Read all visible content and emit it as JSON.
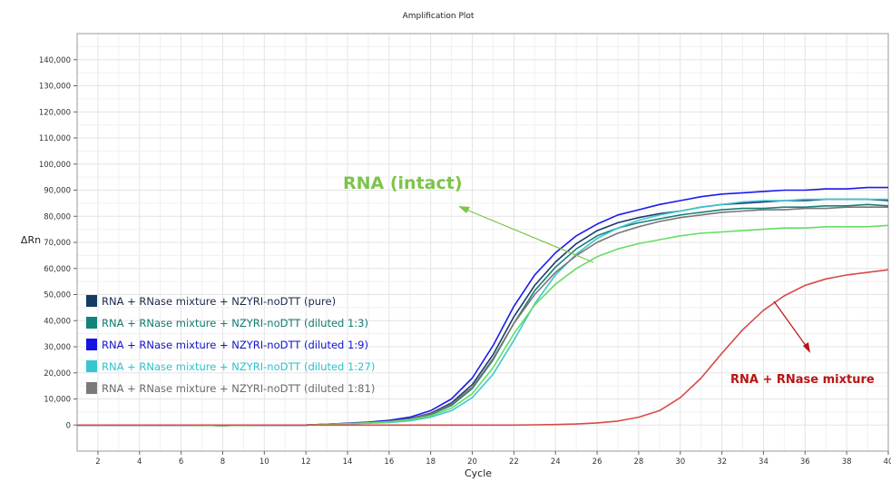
{
  "chart_data": {
    "type": "line",
    "title": "Amplification Plot",
    "xlabel": "Cycle",
    "ylabel": "ΔRn",
    "xlim": [
      1,
      40
    ],
    "ylim": [
      -10000,
      150000
    ],
    "xticks": [
      2,
      4,
      6,
      8,
      10,
      12,
      14,
      16,
      18,
      20,
      22,
      24,
      26,
      28,
      30,
      32,
      34,
      36,
      38,
      40
    ],
    "yticks": [
      0,
      10000,
      20000,
      30000,
      40000,
      50000,
      60000,
      70000,
      80000,
      90000,
      100000,
      110000,
      120000,
      130000,
      140000
    ],
    "ytick_labels": [
      "0",
      "10,000",
      "20,000",
      "30,000",
      "40,000",
      "50,000",
      "60,000",
      "70,000",
      "80,000",
      "90,000",
      "100,000",
      "110,000",
      "120,000",
      "130,000",
      "140,000"
    ],
    "grid": true,
    "legend_position": "center-left",
    "x": [
      1,
      2,
      4,
      6,
      8,
      10,
      12,
      14,
      15,
      16,
      17,
      18,
      19,
      20,
      21,
      22,
      23,
      24,
      25,
      26,
      27,
      28,
      29,
      30,
      31,
      32,
      33,
      34,
      35,
      36,
      37,
      38,
      39,
      40
    ],
    "series": [
      {
        "name": "RNA + RNase mixture + NZYRI-noDTT (pure)",
        "color": "#1c3a6e",
        "values": [
          0,
          0,
          0,
          0,
          -200,
          0,
          0,
          600,
          900,
          1500,
          2500,
          4500,
          8500,
          15500,
          27000,
          41500,
          53500,
          62500,
          69500,
          74500,
          77500,
          79500,
          81000,
          82000,
          83500,
          84500,
          85000,
          85500,
          86000,
          86000,
          86500,
          86500,
          86500,
          86000
        ]
      },
      {
        "name": "RNA + RNase mixture + NZYRI-noDTT (diluted 1:3)",
        "color": "#1a8078",
        "values": [
          0,
          0,
          0,
          0,
          -200,
          0,
          0,
          600,
          800,
          1300,
          2200,
          4000,
          7500,
          14000,
          25000,
          39000,
          51500,
          60500,
          67500,
          72500,
          75500,
          77500,
          79000,
          80500,
          81500,
          82500,
          83000,
          83000,
          83500,
          83500,
          84000,
          84000,
          84500,
          84000
        ]
      },
      {
        "name": "RNA + RNase mixture + NZYRI-noDTT (diluted 1:9)",
        "color": "#1a1aee",
        "values": [
          0,
          0,
          0,
          0,
          -200,
          0,
          0,
          700,
          1100,
          1800,
          3000,
          5500,
          10000,
          18000,
          30500,
          45500,
          57500,
          66000,
          72500,
          77000,
          80500,
          82500,
          84500,
          86000,
          87500,
          88500,
          89000,
          89500,
          90000,
          90000,
          90500,
          90500,
          91000,
          91000
        ]
      },
      {
        "name": "RNA + RNase mixture + NZYRI-noDTT (diluted 1:27)",
        "color": "#3cc8d0",
        "values": [
          0,
          0,
          0,
          0,
          -200,
          0,
          0,
          500,
          700,
          1000,
          1600,
          3000,
          5500,
          10500,
          19500,
          32500,
          46500,
          57500,
          65500,
          71500,
          75500,
          78500,
          80500,
          82000,
          83500,
          84500,
          85500,
          86000,
          86000,
          86500,
          86500,
          86500,
          86500,
          86500
        ]
      },
      {
        "name": "RNA + RNase mixture + NZYRI-noDTT (diluted 1:81)",
        "color": "#777777",
        "values": [
          0,
          0,
          0,
          0,
          -200,
          0,
          0,
          600,
          900,
          1400,
          2400,
          4200,
          8000,
          14500,
          25500,
          39000,
          50000,
          58500,
          65000,
          70000,
          73500,
          76000,
          78000,
          79500,
          80500,
          81500,
          82000,
          82500,
          82500,
          83000,
          83000,
          83500,
          83500,
          83500
        ]
      },
      {
        "name": "",
        "color": "#66dd66",
        "values": [
          0,
          0,
          0,
          0,
          -200,
          0,
          0,
          500,
          800,
          1200,
          2000,
          3500,
          6500,
          12000,
          22000,
          35000,
          46000,
          54000,
          60000,
          64500,
          67500,
          69500,
          71000,
          72500,
          73500,
          74000,
          74500,
          75000,
          75500,
          75500,
          76000,
          76000,
          76000,
          76500
        ]
      },
      {
        "name": "",
        "color": "#d84a4a",
        "values": [
          0,
          0,
          0,
          0,
          0,
          0,
          0,
          0,
          0,
          0,
          0,
          0,
          0,
          0,
          0,
          0,
          100,
          200,
          400,
          800,
          1500,
          3000,
          5500,
          10500,
          18000,
          27500,
          36500,
          44000,
          49500,
          53500,
          56000,
          57500,
          58500,
          59500
        ]
      }
    ],
    "annotations": [
      {
        "text": "RNA (intact)",
        "color": "#7cc44a"
      },
      {
        "text": "RNA + RNase mixture",
        "color": "#b81414"
      }
    ]
  },
  "legend": [
    {
      "label": "RNA + RNase mixture + NZYRI-noDTT (pure)",
      "swatch": "#163a66",
      "text_color": "#1a2a4a"
    },
    {
      "label": "RNA + RNase mixture + NZYRI-noDTT (diluted 1:3)",
      "swatch": "#13837a",
      "text_color": "#117a72"
    },
    {
      "label": "RNA + RNase mixture + NZYRI-noDTT (diluted 1:9)",
      "swatch": "#1414e6",
      "text_color": "#1414cc"
    },
    {
      "label": "RNA + RNase mixture + NZYRI-noDTT (diluted 1:27)",
      "swatch": "#36c6d2",
      "text_color": "#2ec2cc"
    },
    {
      "label": "RNA + RNase mixture + NZYRI-noDTT (diluted 1:81)",
      "swatch": "#7a7a7a",
      "text_color": "#6a6a6a"
    }
  ]
}
